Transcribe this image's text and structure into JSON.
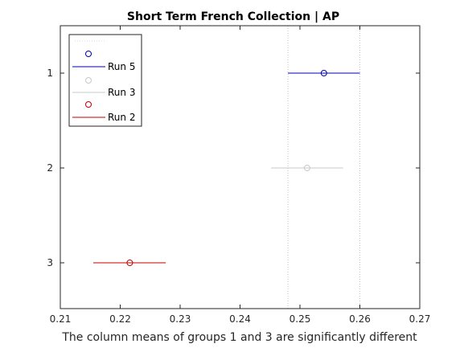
{
  "chart_data": {
    "type": "errorbar",
    "title": "Short Term French Collection | AP",
    "xlabel": "The column means of groups 1 and 3 are significantly different",
    "ylabel": "",
    "xlim": [
      0.21,
      0.27
    ],
    "x_ticks": [
      "0.21",
      "0.22",
      "0.23",
      "0.24",
      "0.25",
      "0.26",
      "0.27"
    ],
    "y_categories": [
      "1",
      "2",
      "3"
    ],
    "grid": false,
    "reference_lines": [
      0.248,
      0.26
    ],
    "legend_position": "top-left",
    "series": [
      {
        "group": "1",
        "mean": 0.254,
        "lower": 0.248,
        "upper": 0.26,
        "color": "#0000b0"
      },
      {
        "group": "2",
        "mean": 0.2512,
        "lower": 0.2452,
        "upper": 0.2572,
        "color": "#c8c8c8"
      },
      {
        "group": "3",
        "mean": 0.2216,
        "lower": 0.2155,
        "upper": 0.2276,
        "color": "#c00000"
      }
    ],
    "legend": [
      {
        "marker_color": "#0000b0",
        "line_color": "#0000b0",
        "label": "Run 5"
      },
      {
        "marker_color": "#c8c8c8",
        "line_color": "#c8c8c8",
        "label": "Run 3"
      },
      {
        "marker_color": "#c00000",
        "line_color": "#c00000",
        "label": "Run 2"
      }
    ]
  }
}
